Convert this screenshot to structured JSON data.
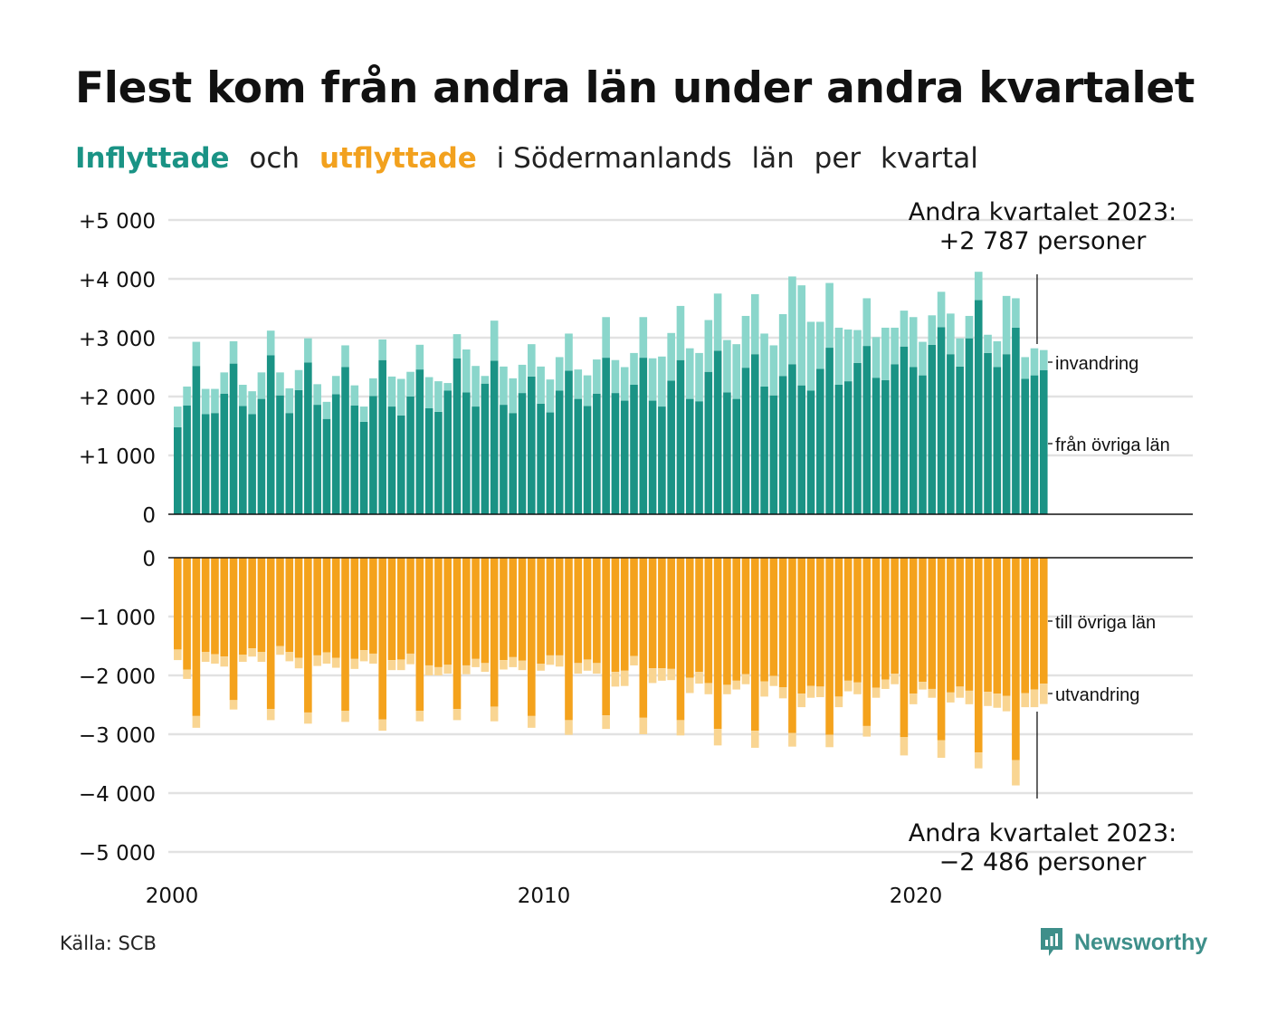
{
  "title": "Flest kom från andra län under andra kvartalet",
  "subtitle": {
    "part1": "Inflyttade",
    "part2": "och",
    "part3": "utflyttade",
    "part4": "i Södermanlands",
    "part5": "län",
    "part6": "per",
    "part7": "kvartal"
  },
  "source": "Källa: SCB",
  "brand": "Newsworthy",
  "colors": {
    "in_dark": "#1a9385",
    "in_light": "#8ad6cb",
    "out_dark": "#f4a21c",
    "out_light": "#f9d592",
    "grid": "#e2e2e2"
  },
  "annotations": {
    "top_line1": "Andra kvartalet 2023:",
    "top_line2": "+2 787 personer",
    "bottom_line1": "Andra kvartalet 2023:",
    "bottom_line2": "−2 486 personer"
  },
  "chart_data": {
    "type": "bar",
    "stacked": true,
    "x_start": "2000 Q1",
    "x_tick_labels": [
      "2000",
      "2010",
      "2020"
    ],
    "top_panel": {
      "y_tick_labels": [
        "+5 000",
        "+4 000",
        "+3 000",
        "+2 000",
        "+1 000",
        "0"
      ],
      "ylim": [
        0,
        5000
      ],
      "series_labels": [
        "invandring",
        "från övriga län"
      ],
      "from_other_counties": [
        1480,
        1850,
        2520,
        1700,
        1720,
        2050,
        2560,
        1840,
        1700,
        1960,
        2700,
        2020,
        1720,
        2110,
        2580,
        1860,
        1620,
        2040,
        2500,
        1850,
        1570,
        2010,
        2620,
        1830,
        1680,
        2000,
        2460,
        1800,
        1740,
        2100,
        2650,
        2070,
        1830,
        2220,
        2610,
        1860,
        1720,
        2060,
        2340,
        1880,
        1730,
        2100,
        2440,
        1960,
        1840,
        2050,
        2660,
        2060,
        1930,
        2200,
        2660,
        1930,
        1830,
        2270,
        2620,
        1960,
        1920,
        2420,
        2780,
        2070,
        1960,
        2490,
        2720,
        2170,
        2020,
        2350,
        2550,
        2190,
        2100,
        2470,
        2830,
        2200,
        2260,
        2570,
        2860,
        2320,
        2280,
        2550,
        2850,
        2500,
        2360,
        2880,
        3180,
        2720,
        2510,
        2990,
        3640,
        2740,
        2500,
        2720,
        3170,
        2300,
        2360,
        2450
      ],
      "immigration": [
        350,
        320,
        410,
        430,
        410,
        360,
        380,
        360,
        390,
        450,
        420,
        390,
        420,
        340,
        410,
        350,
        290,
        310,
        370,
        340,
        260,
        300,
        350,
        510,
        620,
        420,
        420,
        530,
        520,
        130,
        410,
        730,
        690,
        130,
        680,
        650,
        590,
        480,
        550,
        630,
        560,
        570,
        630,
        500,
        520,
        580,
        690,
        560,
        570,
        540,
        690,
        720,
        850,
        810,
        920,
        860,
        820,
        880,
        970,
        890,
        930,
        880,
        1020,
        900,
        850,
        1050,
        1490,
        1700,
        1170,
        800,
        1100,
        970,
        880,
        560,
        810,
        690,
        890,
        620,
        610,
        850,
        570,
        500,
        600,
        690,
        480,
        380,
        480,
        310,
        440,
        990,
        500,
        370,
        460,
        340
      ]
    },
    "bottom_panel": {
      "y_tick_labels": [
        "0",
        "−1 000",
        "−2 000",
        "−3 000",
        "−4 000",
        "−5 000"
      ],
      "ylim": [
        -5000,
        0
      ],
      "series_labels": [
        "till övriga län",
        "utvandring"
      ],
      "to_other_counties": [
        -1560,
        -1900,
        -2690,
        -1600,
        -1640,
        -1680,
        -2420,
        -1650,
        -1540,
        -1600,
        -2570,
        -1500,
        -1600,
        -1700,
        -2630,
        -1660,
        -1610,
        -1700,
        -2600,
        -1720,
        -1570,
        -1630,
        -2750,
        -1740,
        -1730,
        -1630,
        -2600,
        -1830,
        -1860,
        -1820,
        -2570,
        -1830,
        -1720,
        -1790,
        -2530,
        -1740,
        -1690,
        -1750,
        -2690,
        -1800,
        -1660,
        -1660,
        -2760,
        -1790,
        -1730,
        -1790,
        -2680,
        -1940,
        -1920,
        -1670,
        -2720,
        -1880,
        -1880,
        -1890,
        -2760,
        -2040,
        -1940,
        -2130,
        -2910,
        -2160,
        -2090,
        -1980,
        -2940,
        -2100,
        -2010,
        -2200,
        -2980,
        -2310,
        -2180,
        -2190,
        -3010,
        -2360,
        -2090,
        -2120,
        -2860,
        -2210,
        -2070,
        -1970,
        -3050,
        -2310,
        -2110,
        -2230,
        -3100,
        -2290,
        -2190,
        -2260,
        -3310,
        -2280,
        -2310,
        -2350,
        -3440,
        -2300,
        -2240,
        -2140
      ],
      "emigration": [
        -180,
        -160,
        -200,
        -170,
        -160,
        -170,
        -160,
        -120,
        -140,
        -170,
        -190,
        -150,
        -160,
        -180,
        -190,
        -180,
        -190,
        -170,
        -190,
        -170,
        -190,
        -170,
        -190,
        -170,
        -180,
        -180,
        -180,
        -170,
        -140,
        -150,
        -190,
        -150,
        -140,
        -150,
        -250,
        -160,
        -170,
        -160,
        -200,
        -120,
        -160,
        -190,
        -250,
        -180,
        -190,
        -180,
        -230,
        -250,
        -260,
        -160,
        -280,
        -250,
        -210,
        -190,
        -260,
        -260,
        -200,
        -190,
        -280,
        -160,
        -150,
        -170,
        -290,
        -260,
        -170,
        -190,
        -230,
        -230,
        -200,
        -180,
        -210,
        -180,
        -180,
        -200,
        -180,
        -170,
        -160,
        -180,
        -310,
        -180,
        -130,
        -150,
        -300,
        -170,
        -190,
        -230,
        -270,
        -240,
        -240,
        -260,
        -430,
        -240,
        -300,
        -346
      ]
    },
    "tick_years": [
      2000,
      2010,
      2020
    ]
  }
}
